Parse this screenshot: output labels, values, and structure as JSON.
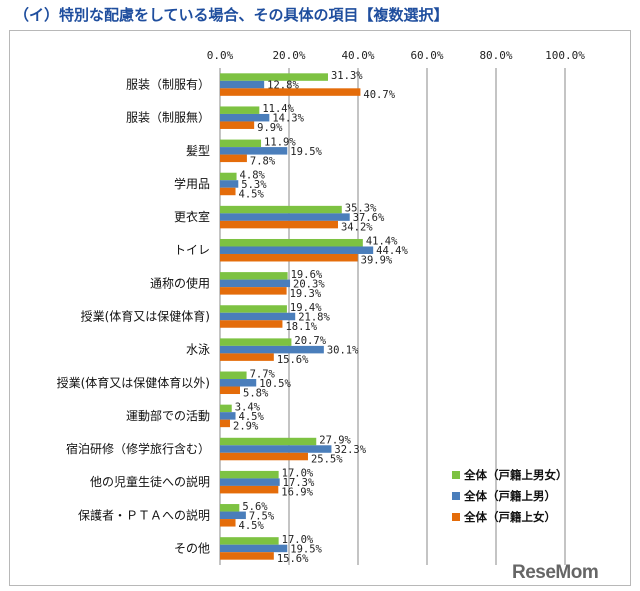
{
  "page": {
    "title": "（イ）特別な配慮をしている場合、その具体の項目【複数選択】",
    "logo": "ReseMom"
  },
  "colors": {
    "all_students": "#7dc242",
    "male": "#4a7ebb",
    "female": "#e46c0a",
    "grid": "#8a8a8a"
  },
  "chart_data": {
    "type": "bar",
    "orientation": "horizontal",
    "title": "",
    "xlabel": "",
    "ylabel": "",
    "xlim": [
      0,
      100
    ],
    "x_ticks": [
      "0.0%",
      "20.0%",
      "40.0%",
      "60.0%",
      "80.0%",
      "100.0%"
    ],
    "x_tick_values": [
      0,
      20,
      40,
      60,
      80,
      100
    ],
    "axis_position": "top",
    "grid": true,
    "legend_position": "right",
    "categories": [
      "服装（制服有）",
      "服装（制服無）",
      "髪型",
      "学用品",
      "更衣室",
      "トイレ",
      "通称の使用",
      "授業(体育又は保健体育)",
      "水泳",
      "授業(体育又は保健体育以外)",
      "運動部での活動",
      "宿泊研修（修学旅行含む）",
      "他の児童生徒への説明",
      "保護者・ＰＴＡへの説明",
      "その他"
    ],
    "series": [
      {
        "name": "全体（戸籍上男女）",
        "color": "#7dc242",
        "values": [
          31.3,
          11.4,
          11.9,
          4.8,
          35.3,
          41.4,
          19.6,
          19.4,
          20.7,
          7.7,
          3.4,
          27.9,
          17.0,
          5.6,
          17.0
        ],
        "labels": [
          "31.3%",
          "11.4%",
          "11.9%",
          "4.8%",
          "35.3%",
          "41.4%",
          "19.6%",
          "19.4%",
          "20.7%",
          "7.7%",
          "3.4%",
          "27.9%",
          "17.0%",
          "5.6%",
          "17.0%"
        ]
      },
      {
        "name": "全体（戸籍上男）",
        "color": "#4a7ebb",
        "values": [
          12.8,
          14.3,
          19.5,
          5.3,
          37.6,
          44.4,
          20.3,
          21.8,
          30.1,
          10.5,
          4.5,
          32.3,
          17.3,
          7.5,
          19.5
        ],
        "labels": [
          "12.8%",
          "14.3%",
          "19.5%",
          "5.3%",
          "37.6%",
          "44.4%",
          "20.3%",
          "21.8%",
          "30.1%",
          "10.5%",
          "4.5%",
          "32.3%",
          "17.3%",
          "7.5%",
          "19.5%"
        ]
      },
      {
        "name": "全体（戸籍上女）",
        "color": "#e46c0a",
        "values": [
          40.7,
          9.9,
          7.8,
          4.5,
          34.2,
          39.9,
          19.3,
          18.1,
          15.6,
          5.8,
          2.9,
          25.5,
          16.9,
          4.5,
          15.6
        ],
        "labels": [
          "40.7%",
          "9.9%",
          "7.8%",
          "4.5%",
          "34.2%",
          "39.9%",
          "19.3%",
          "18.1%",
          "15.6%",
          "5.8%",
          "2.9%",
          "25.5%",
          "16.9%",
          "4.5%",
          "15.6%"
        ]
      }
    ]
  }
}
